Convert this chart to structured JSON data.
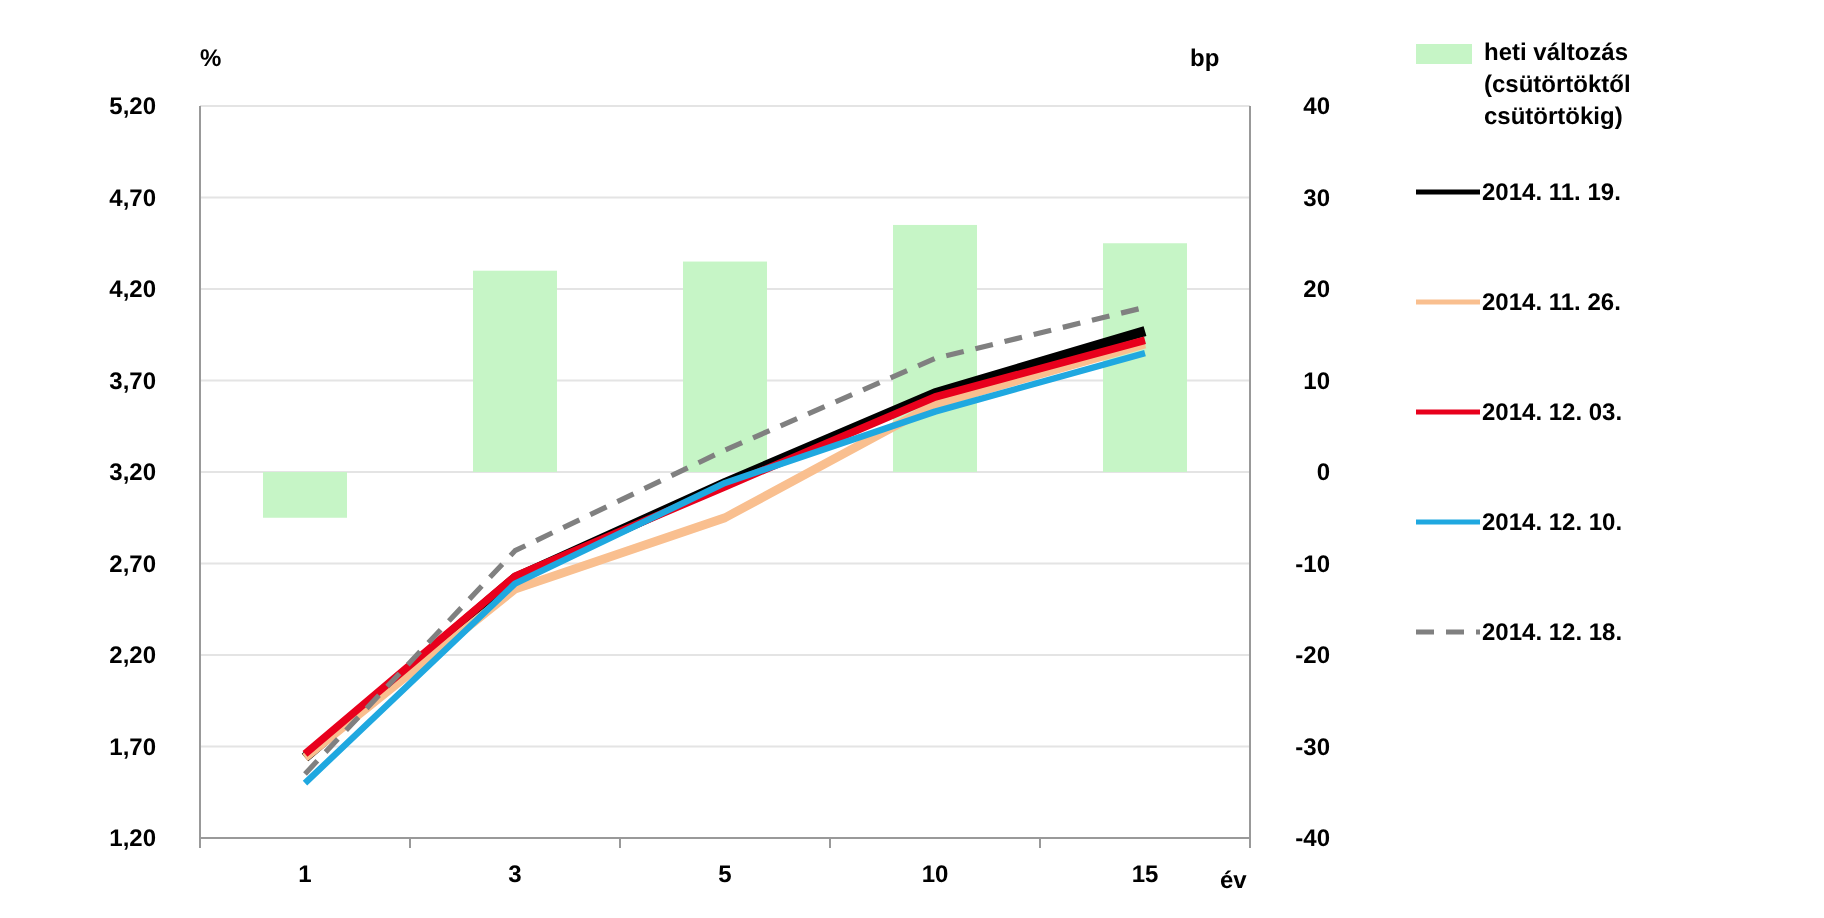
{
  "chart_data": {
    "type": "line",
    "categories": [
      "1",
      "3",
      "5",
      "10",
      "15"
    ],
    "xlabel": "év",
    "ylabel": "%",
    "y2label": "bp",
    "ylim": [
      1.2,
      5.2
    ],
    "yticks": [
      {
        "value": 1.2,
        "label": "1,20"
      },
      {
        "value": 1.7,
        "label": "1,70"
      },
      {
        "value": 2.2,
        "label": "2,20"
      },
      {
        "value": 2.7,
        "label": "2,70"
      },
      {
        "value": 3.2,
        "label": "3,20"
      },
      {
        "value": 3.7,
        "label": "3,70"
      },
      {
        "value": 4.2,
        "label": "4,20"
      },
      {
        "value": 4.7,
        "label": "4,70"
      },
      {
        "value": 5.2,
        "label": "5,20"
      }
    ],
    "y2lim": [
      -40,
      40
    ],
    "y2ticks": [
      -40,
      -30,
      -20,
      -10,
      0,
      10,
      20,
      30,
      40
    ],
    "grid": "y",
    "legend": "right",
    "series": [
      {
        "name": "heti változás (csütörtöktől csütörtökig)",
        "type": "bar",
        "axis": "y2",
        "color": "#c6f5c6",
        "values": [
          -5,
          22,
          23,
          27,
          25
        ]
      },
      {
        "name": "2014. 11. 19.",
        "color": "#000000",
        "values": [
          1.64,
          2.62,
          3.14,
          3.63,
          3.97
        ]
      },
      {
        "name": "2014. 11. 26.",
        "color": "#f9bf8f",
        "values": [
          1.64,
          2.56,
          2.95,
          3.57,
          3.9
        ]
      },
      {
        "name": "2014. 12. 03.",
        "color": "#e8001c",
        "values": [
          1.66,
          2.63,
          3.12,
          3.61,
          3.92
        ]
      },
      {
        "name": "2014. 12. 10.",
        "color": "#1fa8e0",
        "values": [
          1.5,
          2.59,
          3.14,
          3.53,
          3.85
        ]
      },
      {
        "name": "2014. 12. 18.",
        "color": "#808080",
        "line_style": "dashed",
        "values": [
          1.55,
          2.77,
          3.32,
          3.82,
          4.1
        ]
      }
    ]
  }
}
